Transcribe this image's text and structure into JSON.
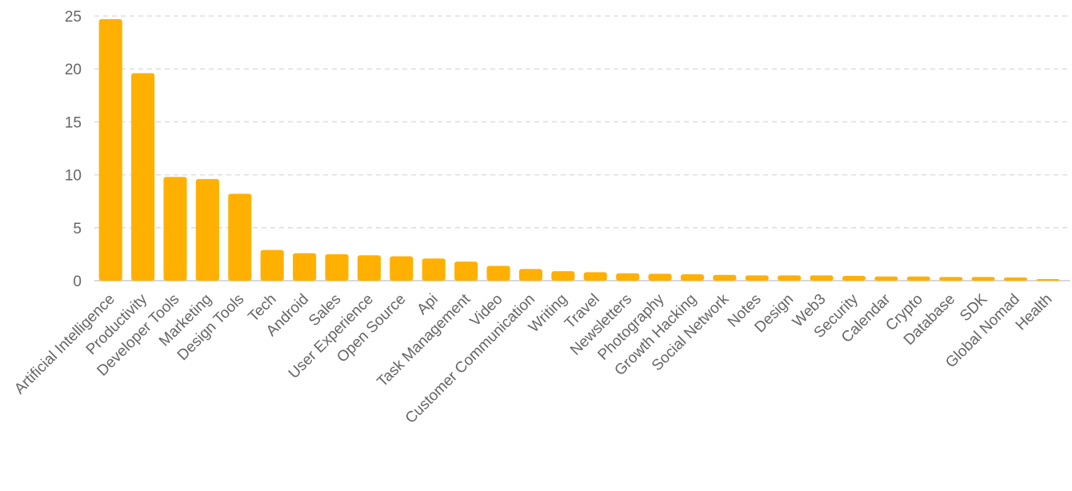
{
  "chart_data": {
    "type": "bar",
    "title": "",
    "xlabel": "",
    "ylabel": "",
    "ylim": [
      0,
      25
    ],
    "yticks": [
      0,
      5,
      10,
      15,
      20,
      25
    ],
    "grid": true,
    "bar_color": "#ffb000",
    "categories": [
      "Artificial Intelligence",
      "Productivity",
      "Developer Tools",
      "Marketing",
      "Design Tools",
      "Tech",
      "Android",
      "Sales",
      "User Experience",
      "Open Source",
      "Api",
      "Task Management",
      "Video",
      "Customer Communication",
      "Writing",
      "Travel",
      "Newsletters",
      "Photography",
      "Growth Hacking",
      "Social Network",
      "Notes",
      "Design",
      "Web3",
      "Security",
      "Calendar",
      "Crypto",
      "Database",
      "SDK",
      "Global Nomad",
      "Health"
    ],
    "values": [
      24.7,
      19.6,
      9.8,
      9.6,
      8.2,
      2.9,
      2.6,
      2.5,
      2.4,
      2.3,
      2.1,
      1.8,
      1.4,
      1.1,
      0.9,
      0.8,
      0.7,
      0.65,
      0.6,
      0.55,
      0.5,
      0.5,
      0.5,
      0.45,
      0.4,
      0.4,
      0.35,
      0.35,
      0.3,
      0.15
    ]
  }
}
